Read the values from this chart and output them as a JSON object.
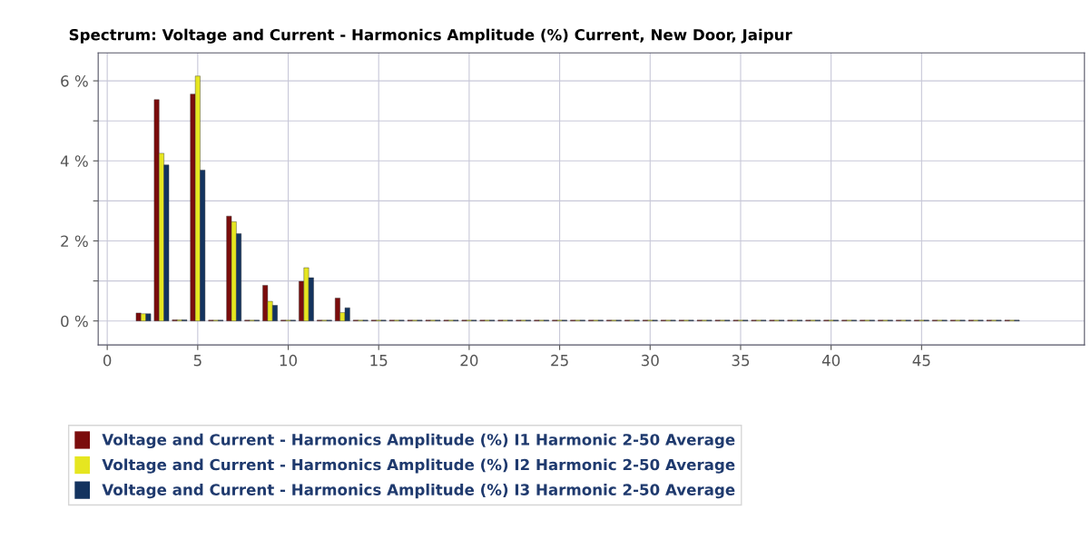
{
  "chart_data": {
    "type": "bar",
    "title": "Spectrum: Voltage and Current - Harmonics Amplitude (%) Current, New Door, Jaipur",
    "x": [
      2,
      3,
      4,
      5,
      6,
      7,
      8,
      9,
      10,
      11,
      12,
      13,
      14,
      15,
      16,
      17,
      18,
      19,
      20,
      21,
      22,
      23,
      24,
      25,
      26,
      27,
      28,
      29,
      30,
      31,
      32,
      33,
      34,
      35,
      36,
      37,
      38,
      39,
      40,
      41,
      42,
      43,
      44,
      45,
      46,
      47,
      48,
      49,
      50
    ],
    "series": [
      {
        "name": "Voltage and Current - Harmonics Amplitude (%) I1 Harmonic 2-50 Average",
        "color": "#7b0c0c",
        "values": [
          0.2,
          5.53,
          0.03,
          5.67,
          0.02,
          2.62,
          0.02,
          0.89,
          0.02,
          0.99,
          0.02,
          0.57,
          0.02,
          0.02,
          0.02,
          0.02,
          0.02,
          0.02,
          0.02,
          0.02,
          0.02,
          0.02,
          0.02,
          0.02,
          0.02,
          0.02,
          0.02,
          0.02,
          0.02,
          0.02,
          0.02,
          0.02,
          0.02,
          0.02,
          0.02,
          0.02,
          0.02,
          0.02,
          0.02,
          0.02,
          0.02,
          0.02,
          0.02,
          0.02,
          0.02,
          0.02,
          0.02,
          0.02,
          0.02
        ]
      },
      {
        "name": "Voltage and Current - Harmonics Amplitude (%) I2 Harmonic 2-50 Average",
        "color": "#e6e620",
        "values": [
          0.18,
          4.19,
          0.03,
          6.12,
          0.02,
          2.48,
          0.02,
          0.49,
          0.02,
          1.33,
          0.02,
          0.21,
          0.02,
          0.02,
          0.02,
          0.02,
          0.02,
          0.02,
          0.02,
          0.02,
          0.02,
          0.02,
          0.02,
          0.02,
          0.02,
          0.02,
          0.02,
          0.02,
          0.02,
          0.02,
          0.02,
          0.02,
          0.02,
          0.02,
          0.02,
          0.02,
          0.02,
          0.02,
          0.02,
          0.02,
          0.02,
          0.02,
          0.02,
          0.02,
          0.02,
          0.02,
          0.02,
          0.02,
          0.02
        ]
      },
      {
        "name": "Voltage and Current - Harmonics Amplitude (%) I3 Harmonic 2-50 Average",
        "color": "#13335f",
        "values": [
          0.18,
          3.9,
          0.03,
          3.77,
          0.02,
          2.18,
          0.02,
          0.39,
          0.02,
          1.08,
          0.02,
          0.33,
          0.02,
          0.02,
          0.02,
          0.02,
          0.02,
          0.02,
          0.02,
          0.02,
          0.02,
          0.02,
          0.02,
          0.02,
          0.02,
          0.02,
          0.02,
          0.02,
          0.02,
          0.02,
          0.02,
          0.02,
          0.02,
          0.02,
          0.02,
          0.02,
          0.02,
          0.02,
          0.02,
          0.02,
          0.02,
          0.02,
          0.02,
          0.02,
          0.02,
          0.02,
          0.02,
          0.02,
          0.02
        ]
      }
    ],
    "xlim": [
      -0.5,
      54
    ],
    "xticks": [
      0,
      5,
      10,
      15,
      20,
      25,
      30,
      35,
      40,
      45
    ],
    "ylim": [
      -0.6,
      6.7
    ],
    "yticks": [
      {
        "value": 0,
        "label": "0 %"
      },
      {
        "value": 1,
        "label": null
      },
      {
        "value": 2,
        "label": "2 %"
      },
      {
        "value": 3,
        "label": null
      },
      {
        "value": 4,
        "label": "4 %"
      },
      {
        "value": 5,
        "label": null
      },
      {
        "value": 6,
        "label": "6 %"
      }
    ],
    "grid": true,
    "legend": "bottom"
  }
}
